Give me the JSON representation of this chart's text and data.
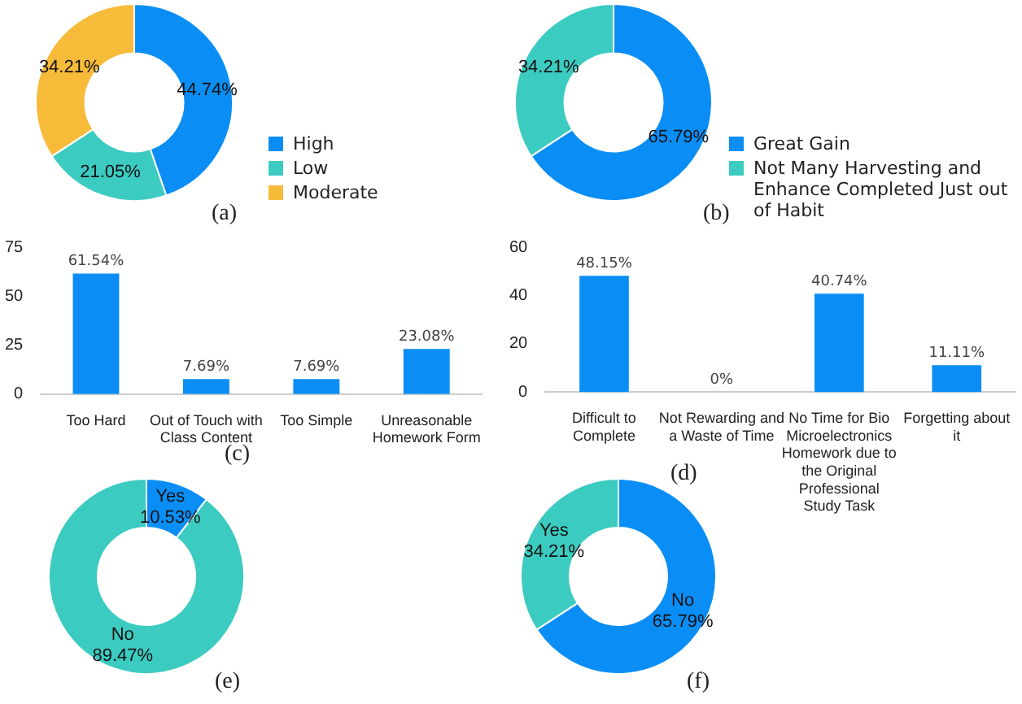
{
  "chart_data": [
    {
      "type": "donut",
      "categories": [
        "High",
        "Low",
        "Moderate"
      ],
      "values": [
        44.74,
        21.05,
        34.21
      ],
      "colors": [
        "#0a8ef5",
        "#3ccbc0",
        "#f7bb3a"
      ],
      "value_labels": [
        "44.74%",
        "21.05%",
        "34.21%"
      ],
      "legend": "right",
      "annotations": [
        "(a)"
      ]
    },
    {
      "type": "donut",
      "categories": [
        "Great Gain",
        "Not Many Harvesting and Enhance Completed Just out of Habit"
      ],
      "values": [
        65.79,
        34.21
      ],
      "colors": [
        "#0a8ef5",
        "#3ccbc0"
      ],
      "value_labels": [
        "65.79%",
        "34.21%"
      ],
      "legend": "right",
      "annotations": [
        "(b)"
      ]
    },
    {
      "type": "bar",
      "categories": [
        "Too Hard",
        "Out of Touch with Class Content",
        "Too Simple",
        "Unreasonable Homework Form"
      ],
      "values": [
        61.54,
        7.69,
        7.69,
        23.08
      ],
      "color": "#0a8ef5",
      "value_labels": [
        "61.54%",
        "7.69%",
        "7.69%",
        "23.08%"
      ],
      "ylim": [
        0,
        75
      ],
      "yticks": [
        0,
        25,
        50,
        75
      ],
      "annotations": [
        "(c)"
      ]
    },
    {
      "type": "bar",
      "categories": [
        "Difficult to Complete",
        "Not Rewarding and a Waste of Time",
        "No Time for Bio Microelectronics Homework due to the Original Professional Study Task",
        "Forgetting about it"
      ],
      "values": [
        48.15,
        0,
        40.74,
        11.11
      ],
      "color": "#0a8ef5",
      "value_labels": [
        "48.15%",
        "0%",
        "40.74%",
        "11.11%"
      ],
      "ylim": [
        0,
        60
      ],
      "yticks": [
        0,
        20,
        40,
        60
      ],
      "annotations": [
        "(d)"
      ]
    },
    {
      "type": "donut",
      "categories": [
        "Yes",
        "No"
      ],
      "values": [
        10.53,
        89.47
      ],
      "colors": [
        "#0a8ef5",
        "#3ccbc0"
      ],
      "value_labels": [
        "10.53%",
        "89.47%"
      ],
      "annotations": [
        "(e)"
      ]
    },
    {
      "type": "donut",
      "categories": [
        "No",
        "Yes"
      ],
      "values": [
        65.79,
        34.21
      ],
      "colors": [
        "#0a8ef5",
        "#3ccbc0"
      ],
      "value_labels": [
        "65.79%",
        "34.21%"
      ],
      "annotations": [
        "(f)"
      ]
    }
  ]
}
